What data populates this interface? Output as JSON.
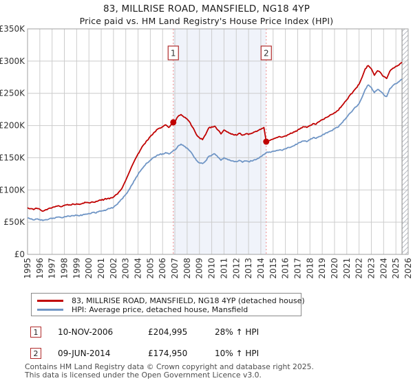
{
  "title": "83, MILLRISE ROAD, MANSFIELD, NG18 4YP",
  "subtitle": "Price paid vs. HM Land Registry's House Price Index (HPI)",
  "colors": {
    "property_line": "#c00000",
    "hpi_line": "#6f95c5",
    "grid": "#cccccc",
    "plot_border": "#a0a0a0",
    "sale_dashed_line": "#f08a8a",
    "between_sales_band": "#f0f3fa",
    "hatch_line": "#b8bcc4",
    "badge_border": "#b02a2a",
    "sale_marker": "#c00000"
  },
  "chart_data": {
    "type": "line",
    "xlabel": "",
    "ylabel": "",
    "xlim": [
      1995,
      2026
    ],
    "ylim": [
      0,
      350000
    ],
    "grid": true,
    "x_ticks": [
      1995,
      1996,
      1997,
      1998,
      1999,
      2000,
      2001,
      2002,
      2003,
      2004,
      2005,
      2006,
      2007,
      2008,
      2009,
      2010,
      2011,
      2012,
      2013,
      2014,
      2015,
      2016,
      2017,
      2018,
      2019,
      2020,
      2021,
      2022,
      2023,
      2024,
      2025,
      2026
    ],
    "y_ticks": [
      {
        "value": 0,
        "label": "£0"
      },
      {
        "value": 50000,
        "label": "£50K"
      },
      {
        "value": 100000,
        "label": "£100K"
      },
      {
        "value": 150000,
        "label": "£150K"
      },
      {
        "value": 200000,
        "label": "£200K"
      },
      {
        "value": 250000,
        "label": "£250K"
      },
      {
        "value": 300000,
        "label": "£300K"
      },
      {
        "value": 350000,
        "label": "£350K"
      }
    ],
    "shaded_span": [
      2006.87,
      2014.44
    ],
    "hatch_span": [
      2025.5,
      2026
    ],
    "markers": [
      {
        "label": "1",
        "x": 2006.87,
        "y": 204995
      },
      {
        "label": "2",
        "x": 2014.44,
        "y": 174950
      }
    ],
    "series": [
      {
        "name": "83, MILLRISE ROAD, MANSFIELD, NG18 4YP (detached house)",
        "color": "#c00000",
        "points": [
          [
            1995.0,
            72500
          ],
          [
            1995.25,
            71000
          ],
          [
            1995.5,
            69500
          ],
          [
            1995.75,
            71500
          ],
          [
            1996.0,
            70000
          ],
          [
            1996.25,
            67000
          ],
          [
            1996.5,
            69500
          ],
          [
            1996.75,
            71500
          ],
          [
            1997.0,
            72500
          ],
          [
            1997.25,
            74000
          ],
          [
            1997.5,
            75500
          ],
          [
            1997.75,
            74000
          ],
          [
            1998.0,
            76000
          ],
          [
            1998.25,
            77500
          ],
          [
            1998.5,
            76500
          ],
          [
            1998.75,
            78000
          ],
          [
            1999.0,
            78500
          ],
          [
            1999.25,
            77500
          ],
          [
            1999.5,
            79500
          ],
          [
            1999.75,
            80500
          ],
          [
            2000.0,
            80000
          ],
          [
            2000.25,
            81500
          ],
          [
            2000.5,
            81000
          ],
          [
            2000.75,
            83000
          ],
          [
            2001.0,
            84000
          ],
          [
            2001.25,
            85500
          ],
          [
            2001.5,
            86500
          ],
          [
            2001.75,
            87500
          ],
          [
            2002.0,
            89000
          ],
          [
            2002.25,
            93000
          ],
          [
            2002.5,
            98000
          ],
          [
            2002.75,
            105000
          ],
          [
            2003.0,
            115000
          ],
          [
            2003.25,
            126000
          ],
          [
            2003.5,
            137000
          ],
          [
            2003.75,
            147000
          ],
          [
            2004.0,
            156000
          ],
          [
            2004.25,
            164000
          ],
          [
            2004.5,
            171000
          ],
          [
            2004.75,
            177000
          ],
          [
            2005.0,
            183000
          ],
          [
            2005.25,
            188000
          ],
          [
            2005.5,
            193000
          ],
          [
            2005.75,
            196000
          ],
          [
            2006.0,
            198000
          ],
          [
            2006.25,
            201000
          ],
          [
            2006.5,
            197000
          ],
          [
            2006.75,
            202000
          ],
          [
            2006.87,
            204995
          ],
          [
            2007.0,
            206000
          ],
          [
            2007.25,
            214000
          ],
          [
            2007.5,
            217000
          ],
          [
            2007.75,
            213000
          ],
          [
            2008.0,
            210000
          ],
          [
            2008.25,
            204000
          ],
          [
            2008.5,
            196000
          ],
          [
            2008.75,
            186000
          ],
          [
            2009.0,
            181000
          ],
          [
            2009.25,
            178000
          ],
          [
            2009.5,
            186000
          ],
          [
            2009.75,
            196000
          ],
          [
            2010.0,
            198000
          ],
          [
            2010.25,
            199000
          ],
          [
            2010.5,
            193000
          ],
          [
            2010.75,
            187000
          ],
          [
            2011.0,
            193000
          ],
          [
            2011.25,
            190000
          ],
          [
            2011.5,
            188000
          ],
          [
            2011.75,
            186000
          ],
          [
            2012.0,
            185000
          ],
          [
            2012.25,
            188000
          ],
          [
            2012.5,
            185000
          ],
          [
            2012.75,
            187000
          ],
          [
            2013.0,
            186000
          ],
          [
            2013.25,
            188000
          ],
          [
            2013.5,
            190000
          ],
          [
            2013.75,
            192000
          ],
          [
            2014.0,
            194000
          ],
          [
            2014.25,
            197000
          ],
          [
            2014.44,
            174950
          ],
          [
            2014.75,
            177000
          ],
          [
            2015.0,
            179000
          ],
          [
            2015.25,
            181000
          ],
          [
            2015.5,
            183000
          ],
          [
            2015.75,
            182000
          ],
          [
            2016.0,
            184000
          ],
          [
            2016.25,
            186000
          ],
          [
            2016.5,
            188000
          ],
          [
            2016.75,
            190000
          ],
          [
            2017.0,
            193000
          ],
          [
            2017.25,
            196000
          ],
          [
            2017.5,
            198000
          ],
          [
            2017.75,
            197000
          ],
          [
            2018.0,
            200000
          ],
          [
            2018.25,
            203000
          ],
          [
            2018.5,
            202000
          ],
          [
            2018.75,
            206000
          ],
          [
            2019.0,
            209000
          ],
          [
            2019.25,
            212000
          ],
          [
            2019.5,
            214000
          ],
          [
            2019.75,
            217000
          ],
          [
            2020.0,
            220000
          ],
          [
            2020.25,
            223000
          ],
          [
            2020.5,
            228000
          ],
          [
            2020.75,
            234000
          ],
          [
            2021.0,
            240000
          ],
          [
            2021.25,
            247000
          ],
          [
            2021.5,
            252000
          ],
          [
            2021.75,
            258000
          ],
          [
            2022.0,
            264000
          ],
          [
            2022.25,
            275000
          ],
          [
            2022.5,
            288000
          ],
          [
            2022.75,
            293000
          ],
          [
            2023.0,
            288000
          ],
          [
            2023.25,
            278000
          ],
          [
            2023.5,
            285000
          ],
          [
            2023.75,
            282000
          ],
          [
            2024.0,
            276000
          ],
          [
            2024.25,
            273000
          ],
          [
            2024.5,
            284000
          ],
          [
            2024.75,
            289000
          ],
          [
            2025.0,
            292000
          ],
          [
            2025.25,
            294000
          ],
          [
            2025.5,
            298000
          ]
        ]
      },
      {
        "name": "HPI: Average price, detached house, Mansfield",
        "color": "#6f95c5",
        "points": [
          [
            1995.0,
            56500
          ],
          [
            1995.25,
            55000
          ],
          [
            1995.5,
            53500
          ],
          [
            1995.75,
            55000
          ],
          [
            1996.0,
            54000
          ],
          [
            1996.25,
            52500
          ],
          [
            1996.5,
            54000
          ],
          [
            1996.75,
            55000
          ],
          [
            1997.0,
            55500
          ],
          [
            1997.25,
            56500
          ],
          [
            1997.5,
            58000
          ],
          [
            1997.75,
            57000
          ],
          [
            1998.0,
            58500
          ],
          [
            1998.25,
            59500
          ],
          [
            1998.5,
            59000
          ],
          [
            1998.75,
            60000
          ],
          [
            1999.0,
            60500
          ],
          [
            1999.25,
            60000
          ],
          [
            1999.5,
            61500
          ],
          [
            1999.75,
            62500
          ],
          [
            2000.0,
            63500
          ],
          [
            2000.25,
            65000
          ],
          [
            2000.5,
            64500
          ],
          [
            2000.75,
            66000
          ],
          [
            2001.0,
            67000
          ],
          [
            2001.25,
            68500
          ],
          [
            2001.5,
            70000
          ],
          [
            2001.75,
            71500
          ],
          [
            2002.0,
            73000
          ],
          [
            2002.25,
            77000
          ],
          [
            2002.5,
            82000
          ],
          [
            2002.75,
            87000
          ],
          [
            2003.0,
            93000
          ],
          [
            2003.25,
            100000
          ],
          [
            2003.5,
            108000
          ],
          [
            2003.75,
            116000
          ],
          [
            2004.0,
            124000
          ],
          [
            2004.25,
            131000
          ],
          [
            2004.5,
            137000
          ],
          [
            2004.75,
            142000
          ],
          [
            2005.0,
            146000
          ],
          [
            2005.25,
            150000
          ],
          [
            2005.5,
            153000
          ],
          [
            2005.75,
            155000
          ],
          [
            2006.0,
            156000
          ],
          [
            2006.25,
            158000
          ],
          [
            2006.5,
            156000
          ],
          [
            2006.75,
            159000
          ],
          [
            2007.0,
            162000
          ],
          [
            2007.25,
            168000
          ],
          [
            2007.5,
            171000
          ],
          [
            2007.75,
            168000
          ],
          [
            2008.0,
            165000
          ],
          [
            2008.25,
            160000
          ],
          [
            2008.5,
            153000
          ],
          [
            2008.75,
            146000
          ],
          [
            2009.0,
            142000
          ],
          [
            2009.25,
            141000
          ],
          [
            2009.5,
            145000
          ],
          [
            2009.75,
            152000
          ],
          [
            2010.0,
            154000
          ],
          [
            2010.25,
            156000
          ],
          [
            2010.5,
            151000
          ],
          [
            2010.75,
            146000
          ],
          [
            2011.0,
            150000
          ],
          [
            2011.25,
            148000
          ],
          [
            2011.5,
            146000
          ],
          [
            2011.75,
            145000
          ],
          [
            2012.0,
            144000
          ],
          [
            2012.25,
            146000
          ],
          [
            2012.5,
            143000
          ],
          [
            2012.75,
            145000
          ],
          [
            2013.0,
            144000
          ],
          [
            2013.25,
            145000
          ],
          [
            2013.5,
            147000
          ],
          [
            2013.75,
            149000
          ],
          [
            2014.0,
            152000
          ],
          [
            2014.25,
            155000
          ],
          [
            2014.44,
            158000
          ],
          [
            2014.75,
            158500
          ],
          [
            2015.0,
            160000
          ],
          [
            2015.25,
            161000
          ],
          [
            2015.5,
            162000
          ],
          [
            2015.75,
            161500
          ],
          [
            2016.0,
            164000
          ],
          [
            2016.25,
            166000
          ],
          [
            2016.5,
            167000
          ],
          [
            2016.75,
            169000
          ],
          [
            2017.0,
            172000
          ],
          [
            2017.25,
            174000
          ],
          [
            2017.5,
            176000
          ],
          [
            2017.75,
            175000
          ],
          [
            2018.0,
            178000
          ],
          [
            2018.25,
            181000
          ],
          [
            2018.5,
            180000
          ],
          [
            2018.75,
            183000
          ],
          [
            2019.0,
            185000
          ],
          [
            2019.25,
            188000
          ],
          [
            2019.5,
            190000
          ],
          [
            2019.75,
            192000
          ],
          [
            2020.0,
            195000
          ],
          [
            2020.25,
            197000
          ],
          [
            2020.5,
            202000
          ],
          [
            2020.75,
            208000
          ],
          [
            2021.0,
            213000
          ],
          [
            2021.25,
            219000
          ],
          [
            2021.5,
            224000
          ],
          [
            2021.75,
            229000
          ],
          [
            2022.0,
            234000
          ],
          [
            2022.25,
            244000
          ],
          [
            2022.5,
            256000
          ],
          [
            2022.75,
            263000
          ],
          [
            2023.0,
            259000
          ],
          [
            2023.25,
            251000
          ],
          [
            2023.5,
            256000
          ],
          [
            2023.75,
            253000
          ],
          [
            2024.0,
            248000
          ],
          [
            2024.25,
            245000
          ],
          [
            2024.5,
            257000
          ],
          [
            2024.75,
            262000
          ],
          [
            2025.0,
            265000
          ],
          [
            2025.25,
            268000
          ],
          [
            2025.5,
            272000
          ]
        ]
      }
    ]
  },
  "legend": {
    "items": [
      {
        "label": "83, MILLRISE ROAD, MANSFIELD, NG18 4YP (detached house)",
        "color": "#c00000"
      },
      {
        "label": "HPI: Average price, detached house, Mansfield",
        "color": "#6f95c5"
      }
    ]
  },
  "sales": [
    {
      "num": "1",
      "date": "10-NOV-2006",
      "price": "£204,995",
      "hpi": "28% ↑ HPI"
    },
    {
      "num": "2",
      "date": "09-JUN-2014",
      "price": "£174,950",
      "hpi": "10% ↑ HPI"
    }
  ],
  "footer": {
    "line1": "Contains HM Land Registry data © Crown copyright and database right 2025.",
    "line2": "This data is licensed under the Open Government Licence v3.0."
  }
}
